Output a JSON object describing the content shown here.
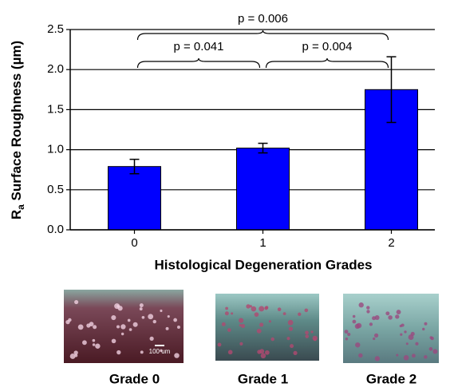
{
  "chart_data": {
    "type": "bar",
    "ylabel_parts": [
      "R",
      "a",
      " Surface Roughness (µm)"
    ],
    "xlabel": "Histological Degeneration Grades",
    "categories": [
      "0",
      "1",
      "2"
    ],
    "series": [
      {
        "color": "#0000ff",
        "values": [
          0.79,
          1.02,
          1.75
        ],
        "errors": [
          0.09,
          0.06,
          0.41
        ]
      }
    ],
    "ylim": [
      0,
      2.5
    ],
    "yticks": [
      {
        "value": 0,
        "label": "0.0"
      },
      0.5,
      {
        "value": 1,
        "label": "1.0"
      },
      1.5,
      {
        "value": 2,
        "label": "2.0"
      },
      2.5
    ],
    "grid": true,
    "annotations": [
      {
        "text": "p = 0.041",
        "between": [
          "0",
          "1"
        ]
      },
      {
        "text": "p = 0.004",
        "between": [
          "1",
          "2"
        ]
      },
      {
        "text": "p = 0.006",
        "between": [
          "0",
          "2"
        ]
      }
    ]
  },
  "panels": {
    "captions": [
      "Grade 0",
      "Grade 1",
      "Grade 2"
    ],
    "scale_bar_label": "100 um"
  }
}
